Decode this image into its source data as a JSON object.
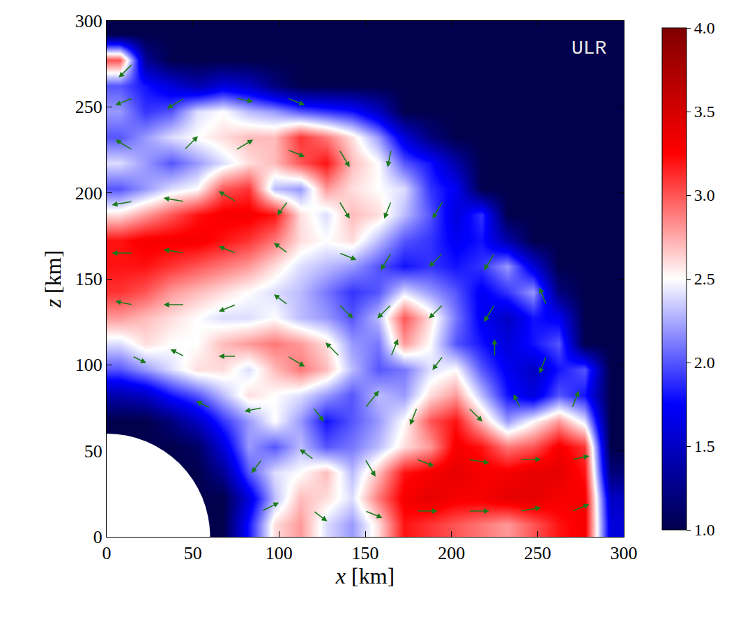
{
  "chart_data": {
    "type": "heatmap",
    "x_label": "x [km]",
    "y_label": "z [km]",
    "annotation": "ULR",
    "xlim": [
      0,
      300
    ],
    "ylim": [
      0,
      300
    ],
    "xticks": [
      0,
      50,
      100,
      150,
      200,
      250,
      300
    ],
    "yticks": [
      0,
      50,
      100,
      150,
      200,
      250,
      300
    ],
    "inner_radius": 60,
    "x": [
      7.5,
      22.5,
      37.5,
      52.5,
      67.5,
      82.5,
      97.5,
      112.5,
      127.5,
      142.5,
      157.5,
      172.5,
      187.5,
      202.5,
      217.5,
      232.5,
      247.5,
      262.5,
      277.5,
      292.5
    ],
    "y": [
      7.5,
      22.5,
      37.5,
      52.5,
      67.5,
      82.5,
      97.5,
      112.5,
      127.5,
      142.5,
      157.5,
      172.5,
      187.5,
      202.5,
      217.5,
      232.5,
      247.5,
      262.5,
      277.5,
      292.5
    ],
    "cells": [
      [
        null,
        null,
        null,
        null,
        1.0,
        1.8,
        2.6,
        2.8,
        2.4,
        2.2,
        2.6,
        3.2,
        3.1,
        3.0,
        2.9,
        2.8,
        3.0,
        3.2,
        3.3,
        1.6
      ],
      [
        null,
        null,
        null,
        null,
        1.0,
        1.6,
        2.3,
        2.7,
        2.6,
        2.4,
        2.9,
        3.3,
        3.4,
        3.3,
        3.3,
        3.4,
        3.4,
        3.3,
        3.3,
        1.5
      ],
      [
        null,
        null,
        null,
        1.0,
        1.3,
        2.0,
        2.4,
        2.5,
        2.7,
        2.3,
        2.7,
        3.2,
        3.3,
        3.4,
        3.3,
        3.3,
        3.4,
        3.4,
        3.2,
        1.2
      ],
      [
        null,
        null,
        1.0,
        1.1,
        1.6,
        2.2,
        2.0,
        2.3,
        2.0,
        2.1,
        2.3,
        2.6,
        2.8,
        3.3,
        3.2,
        2.9,
        3.0,
        3.3,
        3.1,
        1.0
      ],
      [
        1.0,
        1.0,
        1.2,
        1.5,
        1.9,
        2.2,
        2.5,
        2.2,
        1.8,
        2.0,
        2.2,
        2.5,
        3.0,
        3.2,
        2.7,
        2.2,
        2.5,
        2.8,
        2.4,
        1.0
      ],
      [
        1.4,
        1.5,
        1.8,
        2.0,
        2.3,
        2.6,
        2.5,
        2.4,
        2.2,
        2.0,
        2.3,
        2.2,
        2.6,
        2.8,
        2.3,
        1.8,
        1.6,
        2.0,
        1.8,
        1.0
      ],
      [
        2.0,
        2.2,
        2.4,
        2.6,
        2.6,
        2.4,
        2.7,
        2.9,
        2.7,
        2.3,
        2.0,
        2.1,
        2.4,
        2.5,
        2.0,
        1.7,
        1.5,
        1.8,
        2.0,
        1.0
      ],
      [
        2.4,
        2.6,
        2.5,
        2.5,
        2.7,
        2.8,
        2.9,
        2.8,
        2.6,
        2.2,
        2.1,
        2.8,
        2.5,
        2.0,
        1.8,
        1.6,
        1.8,
        2.0,
        1.0,
        1.0
      ],
      [
        2.8,
        2.7,
        2.6,
        2.5,
        2.4,
        2.4,
        2.5,
        2.3,
        2.2,
        2.0,
        2.3,
        3.0,
        2.6,
        2.1,
        1.7,
        1.5,
        1.8,
        1.7,
        1.0,
        1.0
      ],
      [
        3.1,
        3.0,
        2.8,
        2.7,
        2.6,
        2.5,
        2.4,
        2.3,
        2.1,
        1.9,
        2.0,
        2.4,
        2.2,
        2.0,
        1.7,
        1.9,
        2.2,
        1.2,
        1.0,
        1.0
      ],
      [
        3.2,
        3.2,
        3.1,
        3.0,
        2.9,
        2.8,
        2.6,
        2.4,
        2.3,
        2.2,
        2.0,
        1.8,
        1.9,
        1.8,
        1.9,
        2.2,
        1.6,
        1.0,
        1.0,
        1.0
      ],
      [
        3.2,
        3.3,
        3.3,
        3.3,
        3.2,
        3.1,
        2.9,
        2.6,
        2.5,
        2.6,
        2.3,
        2.0,
        1.9,
        1.7,
        1.8,
        1.4,
        1.0,
        1.0,
        1.0,
        1.0
      ],
      [
        2.6,
        2.8,
        3.0,
        3.2,
        3.3,
        3.3,
        3.2,
        2.6,
        2.4,
        2.7,
        2.6,
        2.3,
        2.0,
        1.6,
        1.9,
        1.0,
        1.0,
        1.0,
        1.0,
        1.0
      ],
      [
        2.0,
        2.2,
        2.4,
        2.5,
        3.0,
        3.1,
        2.3,
        2.2,
        2.8,
        2.6,
        2.5,
        2.4,
        1.9,
        1.7,
        1.0,
        1.0,
        1.0,
        1.0,
        1.0,
        1.0
      ],
      [
        2.4,
        2.2,
        2.0,
        2.2,
        2.4,
        2.6,
        2.7,
        3.0,
        3.2,
        2.7,
        2.5,
        2.0,
        1.8,
        1.4,
        1.0,
        1.0,
        1.0,
        1.0,
        1.0,
        1.0
      ],
      [
        2.0,
        2.2,
        2.4,
        2.5,
        2.6,
        2.7,
        2.7,
        3.1,
        2.9,
        2.6,
        2.2,
        1.6,
        1.2,
        1.0,
        1.0,
        1.0,
        1.0,
        1.0,
        1.0,
        1.0
      ],
      [
        2.2,
        1.9,
        2.0,
        2.4,
        2.5,
        2.3,
        2.2,
        2.0,
        1.9,
        1.8,
        1.5,
        1.0,
        1.0,
        1.0,
        1.0,
        1.0,
        1.0,
        1.0,
        1.0,
        1.0
      ],
      [
        2.0,
        1.8,
        1.6,
        1.4,
        1.6,
        1.5,
        1.2,
        1.0,
        1.0,
        1.0,
        1.0,
        1.0,
        1.0,
        1.0,
        1.0,
        1.0,
        1.0,
        1.0,
        1.0,
        1.0
      ],
      [
        3.0,
        1.3,
        1.0,
        1.0,
        1.0,
        1.0,
        1.0,
        1.0,
        1.0,
        1.0,
        1.0,
        1.0,
        1.0,
        1.0,
        1.0,
        1.0,
        1.0,
        1.0,
        1.0,
        1.0
      ],
      [
        1.0,
        1.0,
        1.0,
        1.0,
        1.0,
        1.0,
        1.0,
        1.0,
        1.0,
        1.0,
        1.0,
        1.0,
        1.0,
        1.0,
        1.0,
        1.0,
        1.0,
        1.0,
        1.0,
        1.0
      ]
    ],
    "colorbar_range": [
      1,
      4
    ],
    "colorbar_ticks": [
      {
        "value": 1,
        "label": "1.0"
      },
      {
        "value": 1.5,
        "label": "1.5"
      },
      {
        "value": 2,
        "label": "2.0"
      },
      {
        "value": 2.5,
        "label": "2.5"
      },
      {
        "value": 3,
        "label": "3.0"
      },
      {
        "value": 3.5,
        "label": "3.5"
      },
      {
        "value": 4,
        "label": "4.0"
      }
    ],
    "vectors": {
      "color": "#1c7a1c",
      "values": [
        [
          90,
          15,
          10,
          5
        ],
        [
          120,
          15,
          8,
          -6
        ],
        [
          150,
          15,
          10,
          -4
        ],
        [
          180,
          15,
          12,
          0
        ],
        [
          210,
          15,
          12,
          0
        ],
        [
          240,
          15,
          12,
          2
        ],
        [
          270,
          15,
          10,
          4
        ],
        [
          90,
          45,
          -6,
          -8
        ],
        [
          120,
          45,
          -8,
          6
        ],
        [
          150,
          45,
          6,
          -10
        ],
        [
          180,
          45,
          10,
          -4
        ],
        [
          210,
          45,
          12,
          -2
        ],
        [
          240,
          45,
          12,
          0
        ],
        [
          270,
          45,
          10,
          2
        ],
        [
          60,
          75,
          -8,
          4
        ],
        [
          90,
          75,
          -10,
          -2
        ],
        [
          120,
          75,
          6,
          -8
        ],
        [
          150,
          75,
          8,
          10
        ],
        [
          180,
          75,
          -4,
          -10
        ],
        [
          210,
          75,
          8,
          -8
        ],
        [
          240,
          75,
          -4,
          8
        ],
        [
          270,
          75,
          4,
          10
        ],
        [
          15,
          105,
          8,
          -4
        ],
        [
          45,
          105,
          -8,
          4
        ],
        [
          75,
          105,
          -10,
          0
        ],
        [
          105,
          105,
          10,
          -6
        ],
        [
          135,
          105,
          -8,
          8
        ],
        [
          165,
          105,
          4,
          10
        ],
        [
          195,
          105,
          -6,
          -8
        ],
        [
          225,
          105,
          0,
          10
        ],
        [
          255,
          105,
          -4,
          -10
        ],
        [
          15,
          135,
          -10,
          2
        ],
        [
          45,
          135,
          -12,
          0
        ],
        [
          75,
          135,
          -10,
          -4
        ],
        [
          105,
          135,
          -8,
          6
        ],
        [
          135,
          135,
          8,
          -8
        ],
        [
          165,
          135,
          -8,
          -8
        ],
        [
          195,
          135,
          -8,
          -8
        ],
        [
          225,
          135,
          -6,
          -10
        ],
        [
          255,
          135,
          -4,
          10
        ],
        [
          15,
          165,
          -12,
          0
        ],
        [
          45,
          165,
          -12,
          2
        ],
        [
          75,
          165,
          -10,
          4
        ],
        [
          105,
          165,
          -8,
          6
        ],
        [
          135,
          165,
          10,
          -4
        ],
        [
          165,
          165,
          -6,
          -10
        ],
        [
          195,
          165,
          -8,
          -8
        ],
        [
          225,
          165,
          -6,
          -10
        ],
        [
          15,
          195,
          -12,
          -2
        ],
        [
          45,
          195,
          -12,
          2
        ],
        [
          75,
          195,
          -10,
          6
        ],
        [
          105,
          195,
          -6,
          -8
        ],
        [
          135,
          195,
          6,
          -10
        ],
        [
          165,
          195,
          -4,
          -10
        ],
        [
          195,
          195,
          -6,
          -10
        ],
        [
          15,
          225,
          -10,
          6
        ],
        [
          45,
          225,
          8,
          8
        ],
        [
          75,
          225,
          10,
          6
        ],
        [
          105,
          225,
          10,
          -4
        ],
        [
          135,
          225,
          6,
          -10
        ],
        [
          165,
          225,
          -2,
          -10
        ],
        [
          15,
          255,
          -10,
          -4
        ],
        [
          45,
          255,
          -10,
          -6
        ],
        [
          75,
          255,
          10,
          -2
        ],
        [
          105,
          255,
          10,
          -4
        ],
        [
          15,
          275,
          -8,
          -8
        ]
      ]
    }
  }
}
